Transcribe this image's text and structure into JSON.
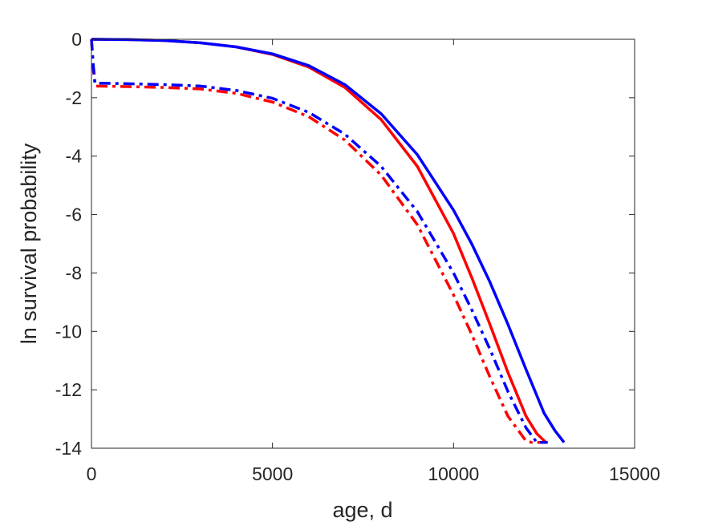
{
  "chart_data": {
    "type": "line",
    "title": "",
    "xlabel": "age, d",
    "ylabel": "ln survival probability",
    "xlim": [
      0,
      15000
    ],
    "ylim": [
      -14,
      0
    ],
    "xticks": [
      0,
      5000,
      10000,
      15000
    ],
    "yticks": [
      0,
      -2,
      -4,
      -6,
      -8,
      -10,
      -12,
      -14
    ],
    "xtick_labels": [
      "0",
      "5000",
      "10000",
      "15000"
    ],
    "ytick_labels": [
      "0",
      "-2",
      "-4",
      "-6",
      "-8",
      "-10",
      "-12",
      "-14"
    ],
    "grid": false,
    "legend": "none",
    "series": [
      {
        "color": "#ff0000",
        "style": "solid",
        "x": [
          0,
          1000,
          2000,
          3000,
          4000,
          5000,
          6000,
          7000,
          8000,
          9000,
          10000,
          10500,
          11000,
          11500,
          12000,
          12300,
          12550
        ],
        "y": [
          0,
          -0.01,
          -0.04,
          -0.12,
          -0.26,
          -0.52,
          -0.95,
          -1.65,
          -2.75,
          -4.35,
          -6.65,
          -8.15,
          -9.75,
          -11.4,
          -12.9,
          -13.5,
          -13.8
        ]
      },
      {
        "color": "#0000ff",
        "style": "solid",
        "x": [
          0,
          1000,
          2000,
          3000,
          4000,
          5000,
          6000,
          7000,
          8000,
          9000,
          10000,
          10500,
          11000,
          11500,
          12000,
          12500,
          12800,
          13050
        ],
        "y": [
          0,
          -0.01,
          -0.04,
          -0.12,
          -0.26,
          -0.5,
          -0.9,
          -1.55,
          -2.55,
          -3.95,
          -5.85,
          -7.0,
          -8.3,
          -9.75,
          -11.3,
          -12.8,
          -13.4,
          -13.8
        ]
      },
      {
        "color": "#ff0000",
        "style": "dashdot",
        "x": [
          0,
          50,
          100,
          1000,
          2000,
          3000,
          4000,
          5000,
          6000,
          7000,
          8000,
          9000,
          10000,
          10500,
          11000,
          11500,
          12000,
          12150,
          12400
        ],
        "y": [
          0,
          -1.0,
          -1.6,
          -1.62,
          -1.65,
          -1.7,
          -1.85,
          -2.15,
          -2.65,
          -3.45,
          -4.65,
          -6.35,
          -8.75,
          -10.1,
          -11.55,
          -12.9,
          -13.75,
          -13.8,
          -13.8
        ]
      },
      {
        "color": "#0000ff",
        "style": "dashdot",
        "x": [
          0,
          50,
          100,
          1000,
          2000,
          3000,
          4000,
          5000,
          6000,
          7000,
          8000,
          9000,
          10000,
          10500,
          11000,
          11500,
          12000,
          12300,
          12600
        ],
        "y": [
          0,
          -0.9,
          -1.5,
          -1.52,
          -1.55,
          -1.6,
          -1.75,
          -2.02,
          -2.5,
          -3.25,
          -4.35,
          -5.9,
          -8.0,
          -9.25,
          -10.6,
          -12.05,
          -13.3,
          -13.8,
          -13.8
        ]
      }
    ]
  }
}
